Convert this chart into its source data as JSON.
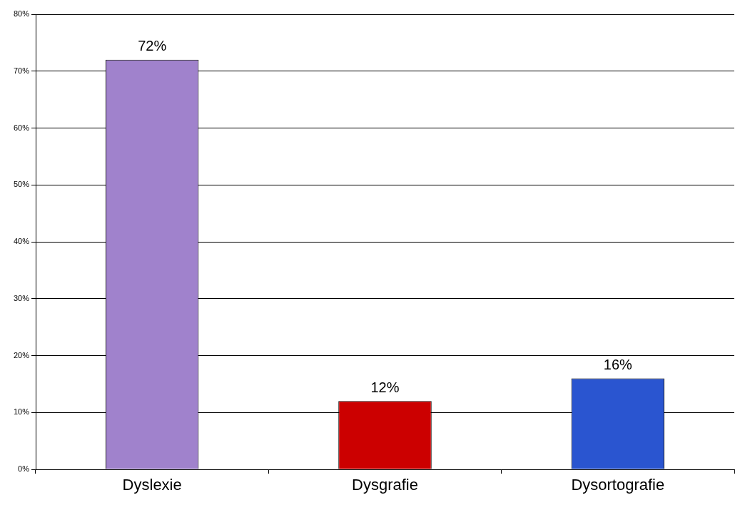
{
  "chart_data": {
    "type": "bar",
    "categories": [
      "Dyslexie",
      "Dysgrafie",
      "Dysortografie"
    ],
    "values": [
      72,
      12,
      16
    ],
    "colors": [
      "#a082cc",
      "#cc0000",
      "#2a55d0"
    ],
    "value_labels": [
      "72%",
      "12%",
      "16%"
    ],
    "ylim": [
      0,
      80
    ],
    "yticks": [
      {
        "value": 0,
        "label": "0%"
      },
      {
        "value": 10,
        "label": "10%"
      },
      {
        "value": 20,
        "label": "20%"
      },
      {
        "value": 30,
        "label": "30%"
      },
      {
        "value": 40,
        "label": "40%"
      },
      {
        "value": 50,
        "label": "50%"
      },
      {
        "value": 60,
        "label": "60%"
      },
      {
        "value": 70,
        "label": "70%"
      },
      {
        "value": 80,
        "label": "80%"
      }
    ],
    "grid": "y"
  }
}
